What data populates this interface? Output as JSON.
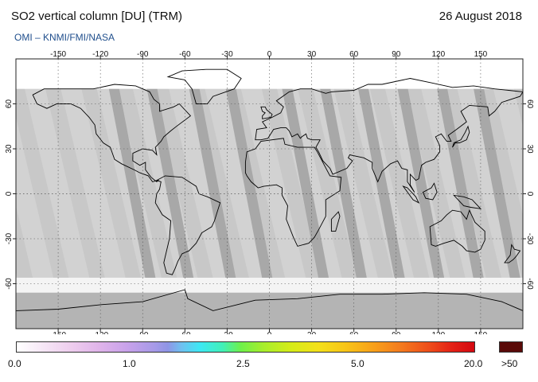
{
  "header": {
    "title": "SO2 vertical column [DU] (TRM)",
    "date": "26 August 2018",
    "credit": "OMI  –  KNMI/FMI/NASA"
  },
  "map": {
    "projection": "equirectangular",
    "lon_range": [
      -180,
      180
    ],
    "lat_range": [
      -90,
      90
    ],
    "lon_ticks": [
      "-150",
      "-120",
      "-90",
      "-60",
      "-30",
      "0",
      "30",
      "60",
      "90",
      "120",
      "150"
    ],
    "lat_ticks": [
      "60",
      "30",
      "0",
      "-30",
      "-60"
    ],
    "colors": {
      "no_data": "#c8c8c8",
      "swath_light": "#d2d2d2",
      "swath_dark": "#a8a8a8",
      "polar_fill": "#b4b4b4",
      "coast": "#000000"
    }
  },
  "colorbar": {
    "labels": [
      "0.0",
      "1.0",
      "2.5",
      "5.0",
      "20.0"
    ],
    "overflow_label": ">50",
    "overflow_color": "#5a0a08"
  }
}
